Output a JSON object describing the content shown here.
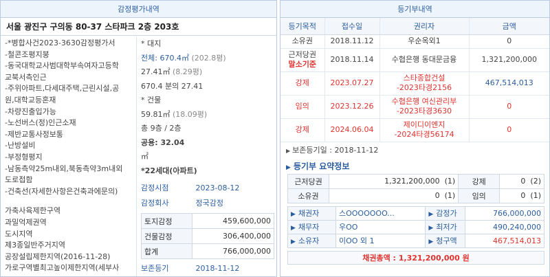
{
  "left": {
    "title": "감정평가내역",
    "address": "서울 광진구 구의동 80-37 스타파크 2층 203호",
    "features": [
      "-*병합사건2023-3630감정평가서",
      "-철콘조평지붕",
      "-동국대학교사범대학부속여자고등학",
      "교북서측인근",
      "-주위아파트,다세대주택,근린시설,공",
      "원,대학교등혼재",
      "-차량진출입가능",
      "-노선버스(정)인근소재",
      "-제반교통사정보통",
      "-난방설비",
      "-부정형평지",
      "-남동측약25m내외,북동측약3m내외",
      "도로접함",
      "-건축선(자세한사항은건축과에문의)"
    ],
    "zoning": [
      "가축사육제한구역",
      "과밀억제권역",
      "도시지역",
      "제3종일반주거지역",
      "공장설립제한지역(2016-11-28)",
      "가로구역별최고높이제한지역(세부사"
    ],
    "land_header": "* 대지",
    "land_total_label": "전체:",
    "land_total_value": "670.4㎡",
    "land_total_pyeong": "(202.8평)",
    "land_share": "27.41㎡",
    "land_share_pyeong": "(8.29평)",
    "land_ratio": "670.4 분의 27.41",
    "bldg_header": "* 건물",
    "bldg_area": "59.81㎡",
    "bldg_area_pyeong": "(18.09평)",
    "floors": "총 9층 / 2층",
    "common_label": "공용:",
    "common_value": "32.04",
    "common_unit": "㎡",
    "household": "*22세대(아파트)",
    "appraisal_date_label": "감정시점",
    "appraisal_date": "2023-08-12",
    "appraisal_company_label": "감정회사",
    "appraisal_company": "정국감정",
    "land_price_label": "토지감정",
    "land_price": "459,600,000",
    "bldg_price_label": "건물감정",
    "bldg_price": "306,400,000",
    "total_label": "합계",
    "total_price": "766,000,000",
    "preservation_label": "보존등기",
    "preservation_date": "2018-11-12"
  },
  "right": {
    "title": "등기부내역",
    "columns": [
      "등기목적",
      "접수일",
      "권리자",
      "금액"
    ],
    "rows": [
      {
        "purpose": "소유권",
        "date": "2018.11.12",
        "holder": "우순옥외1",
        "amount": "0"
      },
      {
        "purpose": "근저당권",
        "purpose_note": "말소기준",
        "date": "2018.11.14",
        "holder": "수협은행 동대문금융",
        "amount": "1,321,200,000"
      },
      {
        "purpose": "강제",
        "date": "2023.07.27",
        "holder": "스타종합건설",
        "holder2": "-2023타경2156",
        "amount": "467,514,013"
      },
      {
        "purpose": "임의",
        "date": "2023.12.26",
        "holder": "수협은행 여신관리부",
        "holder2": "-2023타경3630",
        "amount": "0"
      },
      {
        "purpose": "강제",
        "date": "2024.06.04",
        "holder": "제이디이엔지",
        "holder2": "-2024타경56174",
        "amount": "0"
      }
    ],
    "preservation_text": "보존등기일 : 2018-11-12",
    "summary_title": "등기부 요약정보",
    "summary": {
      "mortgage_label": "근저당권",
      "mortgage_amount": "1,321,200,000",
      "mortgage_count": "(1)",
      "forced_label": "강제",
      "forced_amount": "0",
      "forced_count": "(2)",
      "owner_label": "소유권",
      "owner_amount": "0",
      "owner_count": "(1)",
      "voluntary_label": "임의",
      "voluntary_amount": "0",
      "voluntary_count": "(1)"
    },
    "parties": {
      "creditor_label": "채권자",
      "creditor": "스OOOOOOO...",
      "debtor_label": "채무자",
      "debtor": "우OO",
      "owner_label": "소유자",
      "owner": "이OO 외 1",
      "appraisal_label": "감정가",
      "appraisal": "766,000,000",
      "min_label": "최저가",
      "min": "490,240,000",
      "claim_label": "청구액",
      "claim": "467,514,013"
    },
    "total_claims": "채권총액 : 1,321,200,000 원"
  }
}
